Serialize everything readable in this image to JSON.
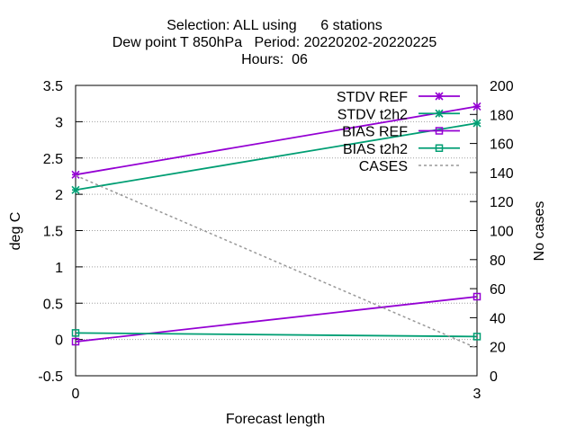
{
  "chart_data": {
    "type": "line",
    "title_lines": [
      "Selection: ALL using      6 stations",
      "Dew point T 850hPa   Period: 20220202-20220225",
      "Hours:  06"
    ],
    "xlabel": "Forecast length",
    "ylabel": "deg C",
    "y2label": "No cases",
    "x": [
      0,
      3
    ],
    "xlim": [
      0,
      3
    ],
    "ylim": [
      -0.5,
      3.5
    ],
    "y2lim": [
      0,
      200
    ],
    "x_ticks": [
      "0",
      "3"
    ],
    "y_ticks": [
      "-0.5",
      "0",
      "0.5",
      "1",
      "1.5",
      "2",
      "2.5",
      "3",
      "3.5"
    ],
    "y2_ticks": [
      "0",
      "20",
      "40",
      "60",
      "80",
      "100",
      "120",
      "140",
      "160",
      "180",
      "200"
    ],
    "grid": true,
    "legend_position": "top-right",
    "series": [
      {
        "name": "STDV REF",
        "axis": "y",
        "values": [
          2.27,
          3.21
        ],
        "color": "#9400d3",
        "marker": "star",
        "dash": "solid"
      },
      {
        "name": "STDV t2h2",
        "axis": "y",
        "values": [
          2.06,
          2.98
        ],
        "color": "#009e73",
        "marker": "star",
        "dash": "solid"
      },
      {
        "name": "BIAS REF",
        "axis": "y",
        "values": [
          -0.03,
          0.59
        ],
        "color": "#9400d3",
        "marker": "square",
        "dash": "solid"
      },
      {
        "name": "BIAS t2h2",
        "axis": "y",
        "values": [
          0.09,
          0.04
        ],
        "color": "#009e73",
        "marker": "square",
        "dash": "solid"
      },
      {
        "name": "CASES",
        "axis": "y2",
        "values": [
          138,
          19
        ],
        "color": "#999999",
        "marker": "none",
        "dash": "dashed"
      }
    ]
  }
}
